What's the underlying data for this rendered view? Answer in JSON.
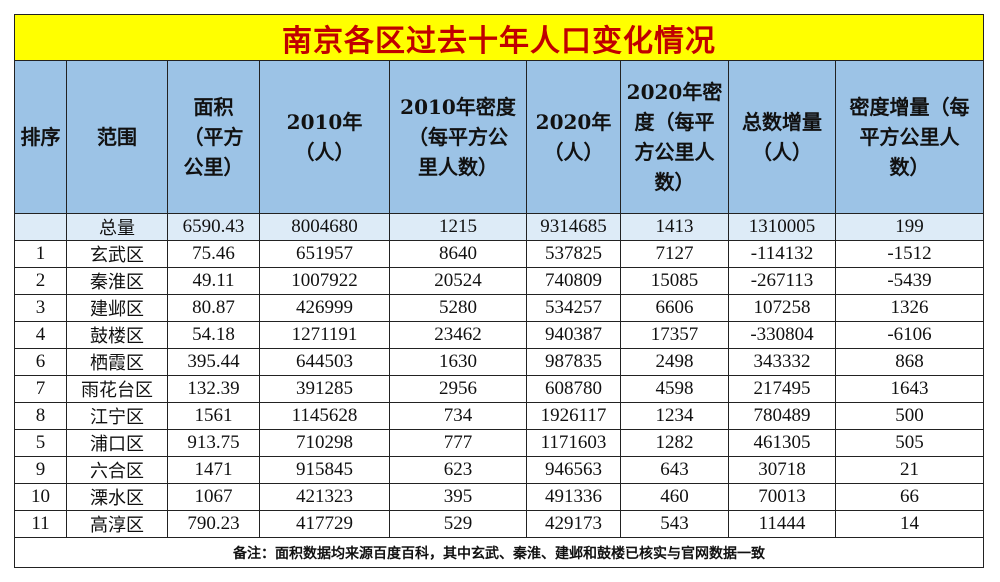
{
  "title": "南京各区过去十年人口变化情况",
  "headers": [
    [
      "排序"
    ],
    [
      "范围"
    ],
    [
      "面积",
      "（平方",
      "公里）"
    ],
    [
      "2010年",
      "（人）"
    ],
    [
      "2010年密度",
      "（每平方公",
      "里人数）"
    ],
    [
      "2020年",
      "（人）"
    ],
    [
      "2020年密",
      "度（每平",
      "方公里人",
      "数）"
    ],
    [
      "总数增量",
      "（人）"
    ],
    [
      "密度增量（每",
      "平方公里人",
      "数）"
    ]
  ],
  "rows": [
    {
      "rank": "",
      "name": "总量",
      "area": "6590.43",
      "pop2010": "8004680",
      "den2010": "1215",
      "pop2020": "9314685",
      "den2020": "1413",
      "inc": "1310005",
      "deninc": "199"
    },
    {
      "rank": "1",
      "name": "玄武区",
      "area": "75.46",
      "pop2010": "651957",
      "den2010": "8640",
      "pop2020": "537825",
      "den2020": "7127",
      "inc": "-114132",
      "deninc": "-1512"
    },
    {
      "rank": "2",
      "name": "秦淮区",
      "area": "49.11",
      "pop2010": "1007922",
      "den2010": "20524",
      "pop2020": "740809",
      "den2020": "15085",
      "inc": "-267113",
      "deninc": "-5439"
    },
    {
      "rank": "3",
      "name": "建邺区",
      "area": "80.87",
      "pop2010": "426999",
      "den2010": "5280",
      "pop2020": "534257",
      "den2020": "6606",
      "inc": "107258",
      "deninc": "1326"
    },
    {
      "rank": "4",
      "name": "鼓楼区",
      "area": "54.18",
      "pop2010": "1271191",
      "den2010": "23462",
      "pop2020": "940387",
      "den2020": "17357",
      "inc": "-330804",
      "deninc": "-6106"
    },
    {
      "rank": "6",
      "name": "栖霞区",
      "area": "395.44",
      "pop2010": "644503",
      "den2010": "1630",
      "pop2020": "987835",
      "den2020": "2498",
      "inc": "343332",
      "deninc": "868"
    },
    {
      "rank": "7",
      "name": "雨花台区",
      "area": "132.39",
      "pop2010": "391285",
      "den2010": "2956",
      "pop2020": "608780",
      "den2020": "4598",
      "inc": "217495",
      "deninc": "1643"
    },
    {
      "rank": "8",
      "name": "江宁区",
      "area": "1561",
      "pop2010": "1145628",
      "den2010": "734",
      "pop2020": "1926117",
      "den2020": "1234",
      "inc": "780489",
      "deninc": "500"
    },
    {
      "rank": "5",
      "name": "浦口区",
      "area": "913.75",
      "pop2010": "710298",
      "den2010": "777",
      "pop2020": "1171603",
      "den2020": "1282",
      "inc": "461305",
      "deninc": "505"
    },
    {
      "rank": "9",
      "name": "六合区",
      "area": "1471",
      "pop2010": "915845",
      "den2010": "623",
      "pop2020": "946563",
      "den2020": "643",
      "inc": "30718",
      "deninc": "21"
    },
    {
      "rank": "10",
      "name": "溧水区",
      "area": "1067",
      "pop2010": "421323",
      "den2010": "395",
      "pop2020": "491336",
      "den2020": "460",
      "inc": "70013",
      "deninc": "66"
    },
    {
      "rank": "11",
      "name": "高淳区",
      "area": "790.23",
      "pop2010": "417729",
      "den2010": "529",
      "pop2020": "429173",
      "den2020": "543",
      "inc": "11444",
      "deninc": "14"
    }
  ],
  "note": "备注：面积数据均来源百度百科，其中玄武、秦淮、建邺和鼓楼已核实与官网数据一致",
  "watermark": "",
  "colors": {
    "title_bg": "#ffff00",
    "title_text": "#c00000",
    "header_bg": "#9cc3e6",
    "total_row_bg": "#ddebf7"
  }
}
